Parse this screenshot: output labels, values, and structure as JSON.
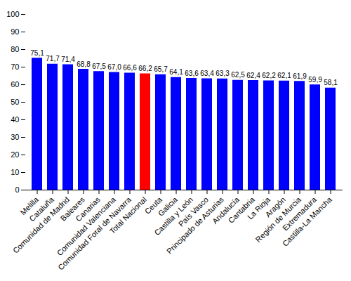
{
  "chart_data": {
    "type": "bar",
    "categories": [
      "Melilla",
      "Cataluña",
      "Comunidad de Madrid",
      "Baleares",
      "Canarias",
      "Comunidad Valenciana",
      "Comunidad Foral de Navarra",
      "Total Nacional",
      "Ceuta",
      "Galicia",
      "Castilla y León",
      "País Vasco",
      "Principado de Asturias",
      "Andalucía",
      "Cantabria",
      "La Rioja",
      "Aragón",
      "Región de Murcia",
      "Extremadura",
      "Castilla-La Mancha"
    ],
    "values": [
      75.1,
      71.7,
      71.4,
      68.8,
      67.5,
      67.0,
      66.6,
      66.2,
      65.7,
      64.1,
      63.6,
      63.4,
      63.3,
      62.5,
      62.4,
      62.2,
      62.1,
      61.9,
      59.9,
      58.1
    ],
    "value_labels": [
      "75,1",
      "71,7",
      "71,4",
      "68,8",
      "67,5",
      "67,0",
      "66,6",
      "66,2",
      "65,7",
      "64,1",
      "63,6",
      "63,4",
      "63,3",
      "62,5",
      "62,4",
      "62,2",
      "62,1",
      "61,9",
      "59,9",
      "58,1"
    ],
    "colors": [
      "#0000ff",
      "#0000ff",
      "#0000ff",
      "#0000ff",
      "#0000ff",
      "#0000ff",
      "#0000ff",
      "#ff0000",
      "#0000ff",
      "#0000ff",
      "#0000ff",
      "#0000ff",
      "#0000ff",
      "#0000ff",
      "#0000ff",
      "#0000ff",
      "#0000ff",
      "#0000ff",
      "#0000ff",
      "#0000ff"
    ],
    "ylim": [
      0,
      100
    ],
    "yticks": [
      0,
      10,
      20,
      30,
      40,
      50,
      60,
      70,
      80,
      90,
      100
    ],
    "grid": false,
    "data_labels": true
  }
}
